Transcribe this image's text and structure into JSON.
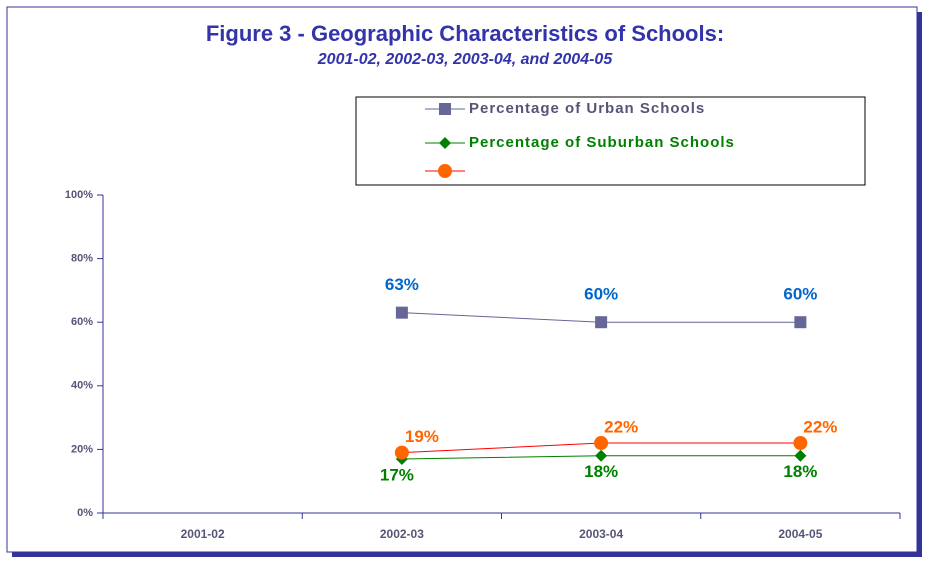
{
  "chart_data": {
    "type": "line",
    "title": "Figure 3 - Geographic Characteristics of Schools:",
    "subtitle": "2001-02, 2002-03, 2003-04, and 2004-05",
    "categories": [
      "2001-02",
      "2002-03",
      "2003-04",
      "2004-05"
    ],
    "series": [
      {
        "name": "Percentage of Urban Schools",
        "color": "#666699",
        "label_color": "#0066cc",
        "marker": "square",
        "values": [
          null,
          63,
          60,
          60
        ],
        "value_labels": [
          null,
          "63%",
          "60%",
          "60%"
        ]
      },
      {
        "name": "Percentage of Suburban Schools",
        "color": "#008000",
        "label_color": "#008000",
        "marker": "diamond",
        "values": [
          null,
          17,
          18,
          18
        ],
        "value_labels": [
          null,
          "17%",
          "18%",
          "18%"
        ]
      },
      {
        "color": "#ff6600",
        "line_color": "#ff0000",
        "label_color": "#ff6600",
        "marker": "circle",
        "values": [
          null,
          19,
          22,
          22
        ],
        "value_labels": [
          null,
          "19%",
          "22%",
          "22%"
        ]
      }
    ],
    "ylim": [
      0,
      100
    ],
    "yticks": [
      {
        "value": 0,
        "label": "0%"
      },
      {
        "value": 20,
        "label": "20%"
      },
      {
        "value": 40,
        "label": "40%"
      },
      {
        "value": 60,
        "label": "60%"
      },
      {
        "value": 80,
        "label": "80%"
      },
      {
        "value": 100,
        "label": "100%"
      }
    ],
    "grid": false,
    "legend": "top-right"
  }
}
